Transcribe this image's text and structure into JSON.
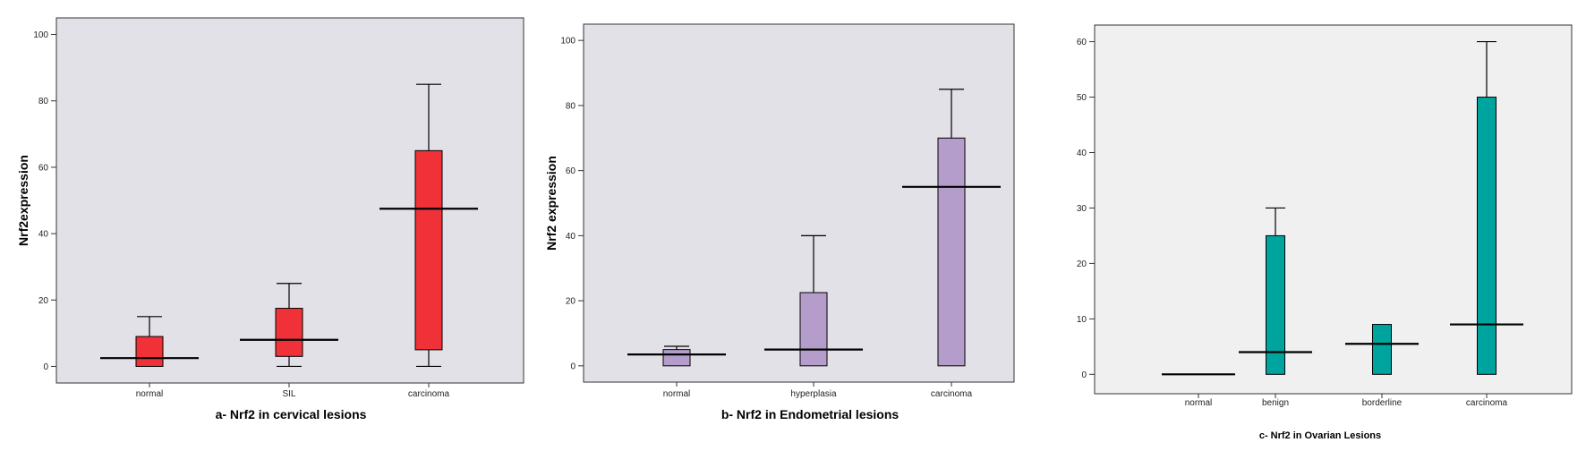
{
  "chart_data": [
    {
      "type": "box",
      "title": "a- Nrf2 in cervical lesions",
      "xlabel": "",
      "ylabel": "Nrf2expression",
      "ylim": [
        -5,
        105
      ],
      "yticks": [
        0,
        20,
        40,
        60,
        80,
        100
      ],
      "categories": [
        "normal",
        "SIL",
        "carcinoma"
      ],
      "boxes": [
        {
          "min": 0,
          "q1": 0,
          "median": 2.5,
          "q3": 9,
          "max": 15
        },
        {
          "min": 0,
          "q1": 3,
          "median": 8,
          "q3": 17.5,
          "max": 25
        },
        {
          "min": 0,
          "q1": 5,
          "median": 47.5,
          "q3": 65,
          "max": 85
        }
      ],
      "color": "#f03238",
      "background": "#e3e1e8"
    },
    {
      "type": "box",
      "title": "b- Nrf2 in Endometrial lesions",
      "xlabel": "",
      "ylabel": "Nrf2 expression",
      "ylim": [
        -5,
        105
      ],
      "yticks": [
        0,
        20,
        40,
        60,
        80,
        100
      ],
      "categories": [
        "normal",
        "hyperplasia",
        "carcinoma"
      ],
      "boxes": [
        {
          "min": 0,
          "q1": 0,
          "median": 3.5,
          "q3": 5,
          "max": 6
        },
        {
          "min": 0,
          "q1": 0,
          "median": 5,
          "q3": 22.5,
          "max": 40
        },
        {
          "min": 0,
          "q1": 0,
          "median": 55,
          "q3": 70,
          "max": 85
        }
      ],
      "color": "#b49dcb",
      "background": "#e3e1e8"
    },
    {
      "type": "box",
      "title": "c- Nrf2 in Ovarian Lesions",
      "xlabel": "",
      "ylabel": "",
      "ylim": [
        -3.5,
        63
      ],
      "yticks": [
        0,
        10,
        20,
        30,
        40,
        50,
        60
      ],
      "categories": [
        "normal",
        "benign",
        "borderline",
        "carcinoma"
      ],
      "boxes": [
        {
          "min": 0,
          "q1": 0,
          "median": 0,
          "q3": 0,
          "max": 0
        },
        {
          "min": 0,
          "q1": 0,
          "median": 4,
          "q3": 25,
          "max": 30
        },
        {
          "min": 0,
          "q1": 0,
          "median": 5.5,
          "q3": 9,
          "max": 9
        },
        {
          "min": 0,
          "q1": 0,
          "median": 9,
          "q3": 50,
          "max": 60
        }
      ],
      "color": "#00a49e",
      "background": "#f0f0f0"
    }
  ]
}
